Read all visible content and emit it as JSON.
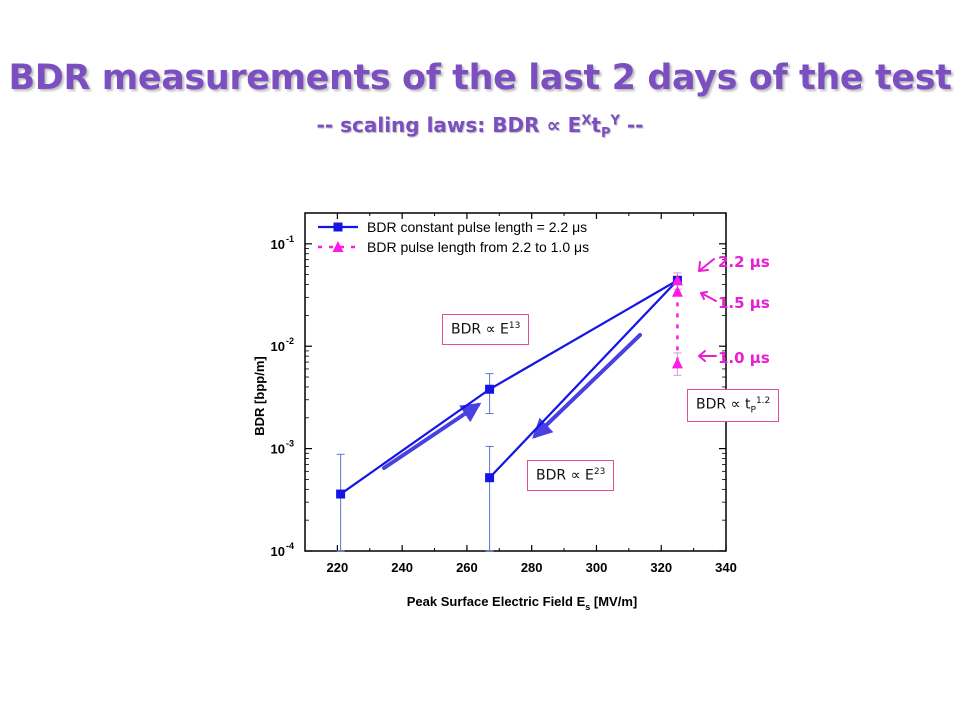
{
  "slide": {
    "title": "BDR measurements of the last 2 days of the test",
    "subtitle_prefix": "-- scaling laws: BDR ∝ E",
    "subtitle_x": "X",
    "subtitle_t": "t",
    "subtitle_p": "P",
    "subtitle_y": "Y",
    "subtitle_suffix": " --"
  },
  "chart_data": {
    "type": "scatter",
    "xlabel": "Peak Surface Electric Field E",
    "xlabel_sub": "s",
    "xlabel_unit": " [MV/m]",
    "ylabel": "BDR [bpp/m]",
    "xlim": [
      210,
      340
    ],
    "ylim": [
      0.0001,
      0.2
    ],
    "yscale": "log",
    "x_ticks": [
      220,
      240,
      260,
      280,
      300,
      320,
      340
    ],
    "y_ticks": [
      {
        "value": 0.0001,
        "label": "10",
        "exp": "-4"
      },
      {
        "value": 0.001,
        "label": "10",
        "exp": "-3"
      },
      {
        "value": 0.01,
        "label": "10",
        "exp": "-2"
      },
      {
        "value": 0.1,
        "label": "10",
        "exp": "-1"
      }
    ],
    "legend_position": "top-left",
    "grid": false,
    "series": [
      {
        "name": "BDR constant pulse length = 2.2 μs",
        "color": "#1414e6",
        "marker": "square",
        "points": [
          {
            "x": 221,
            "y": 0.00036,
            "err_low": 0.0001,
            "err_high": 0.00088
          },
          {
            "x": 267,
            "y": 0.0038,
            "err_low": 0.0022,
            "err_high": 0.0054
          }
        ],
        "line": [
          [
            221,
            0.00036
          ],
          [
            267,
            0.0038
          ],
          [
            325,
            0.044
          ]
        ]
      },
      {
        "name": "",
        "color": "#1414e6",
        "marker": "square",
        "points": [
          {
            "x": 267,
            "y": 0.00052,
            "err_low": 0.0001,
            "err_high": 0.00105
          },
          {
            "x": 325,
            "y": 0.044
          }
        ],
        "line": [
          [
            267,
            0.00052
          ],
          [
            325,
            0.044
          ]
        ]
      },
      {
        "name": "BDR pulse length from 2.2 to 1.0 μs",
        "color": "#ff1ae8",
        "marker": "triangle",
        "points": [
          {
            "x": 325,
            "y": 0.044,
            "err_low": 0.036,
            "err_high": 0.052
          },
          {
            "x": 325,
            "y": 0.034
          },
          {
            "x": 325,
            "y": 0.0068,
            "err_low": 0.0052,
            "err_high": 0.0086
          }
        ],
        "line": [
          [
            325,
            0.044
          ],
          [
            325,
            0.0068
          ]
        ]
      }
    ],
    "annotations": [
      {
        "text": "BDR ∝ E",
        "sup": "13"
      },
      {
        "text": "BDR ∝ E",
        "sup": "23"
      },
      {
        "text": "BDR ∝ t",
        "sub": "P",
        "sup": "1.2"
      }
    ],
    "pulse_labels": [
      "2.2 μs",
      "1.5 μs",
      "1.0 μs"
    ]
  },
  "colors": {
    "title": "#7b4fc0",
    "data_blue": "#1414e6",
    "arrow_blue": "#4a3fe0",
    "magenta": "#ff1ae8",
    "box_border": "#e04f9a"
  }
}
